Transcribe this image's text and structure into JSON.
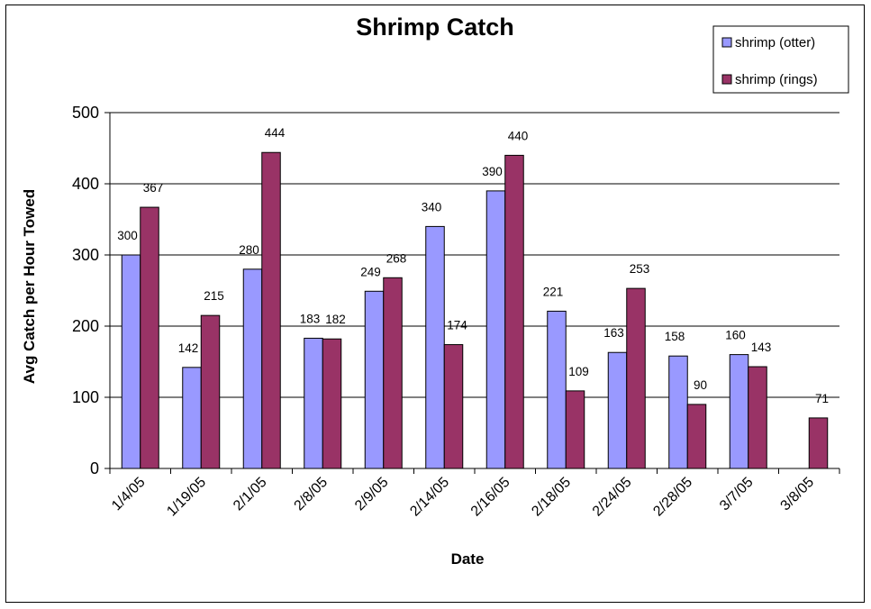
{
  "chart_data": {
    "type": "bar",
    "title": "Shrimp Catch",
    "xlabel": "Date",
    "ylabel": "Avg Catch per Hour Towed",
    "categories": [
      "1/4/05",
      "1/19/05",
      "2/1/05",
      "2/8/05",
      "2/9/05",
      "2/14/05",
      "2/16/05",
      "2/18/05",
      "2/24/05",
      "2/28/05",
      "3/7/05",
      "3/8/05"
    ],
    "series": [
      {
        "name": "shrimp (otter)",
        "color": "#9999ff",
        "values": [
          300,
          142,
          280,
          183,
          249,
          340,
          390,
          221,
          163,
          158,
          160,
          null
        ]
      },
      {
        "name": "shrimp (rings)",
        "color": "#993366",
        "values": [
          367,
          215,
          444,
          182,
          268,
          174,
          440,
          109,
          253,
          90,
          143,
          71
        ]
      }
    ],
    "ylim": [
      0,
      500
    ],
    "yticks": [
      0,
      100,
      200,
      300,
      400,
      500
    ],
    "grid": true,
    "legend_position": "top-right",
    "data_labels": true
  }
}
